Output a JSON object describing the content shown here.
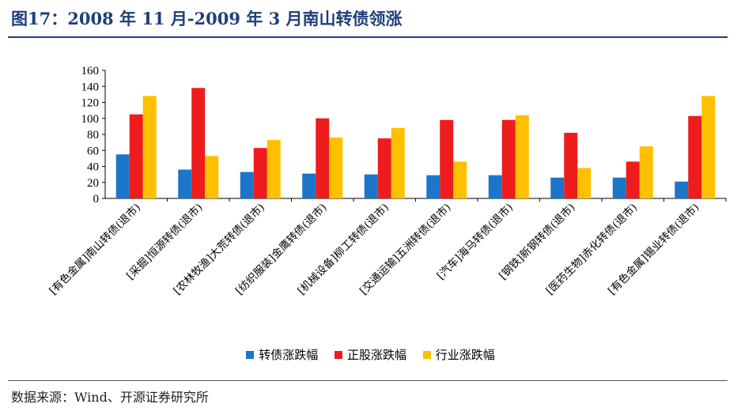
{
  "title": "图17：2008 年 11 月-2009 年 3 月南山转债领涨",
  "source": "数据来源：Wind、开源证券研究所",
  "colors": {
    "title": "#1f3f7a",
    "bond": "#1b75c9",
    "stock": "#ee1c1c",
    "industry": "#ffc000"
  },
  "chart_data": {
    "type": "bar",
    "title": "",
    "xlabel": "",
    "ylabel": "",
    "ylim": [
      0,
      160
    ],
    "yticks": [
      0,
      20,
      40,
      60,
      80,
      100,
      120,
      140,
      160
    ],
    "grid": false,
    "legend_position": "bottom",
    "categories": [
      "[有色金属]南山转债(退市)",
      "[采掘]恒源转债(退市)",
      "[农林牧渔]大荒转债(退市)",
      "[纺织服装]金鹰转债(退市)",
      "[机械设备]柳工转债(退市)",
      "[交通运输]五洲转债(退市)",
      "[汽车]海马转债(退市)",
      "[钢铁]新钢转债(退市)",
      "[医药生物]赤化转债(退市)",
      "[有色金属]锡业转债(退市)"
    ],
    "series": [
      {
        "name": "转债涨跌幅",
        "color": "#1b75c9",
        "values": [
          55,
          36,
          33,
          31,
          30,
          29,
          29,
          26,
          26,
          21
        ]
      },
      {
        "name": "正股涨跌幅",
        "color": "#ee1c1c",
        "values": [
          105,
          138,
          63,
          100,
          75,
          98,
          98,
          82,
          46,
          103
        ]
      },
      {
        "name": "行业涨跌幅",
        "color": "#ffc000",
        "values": [
          128,
          53,
          73,
          76,
          88,
          46,
          104,
          38,
          65,
          128
        ]
      }
    ]
  }
}
